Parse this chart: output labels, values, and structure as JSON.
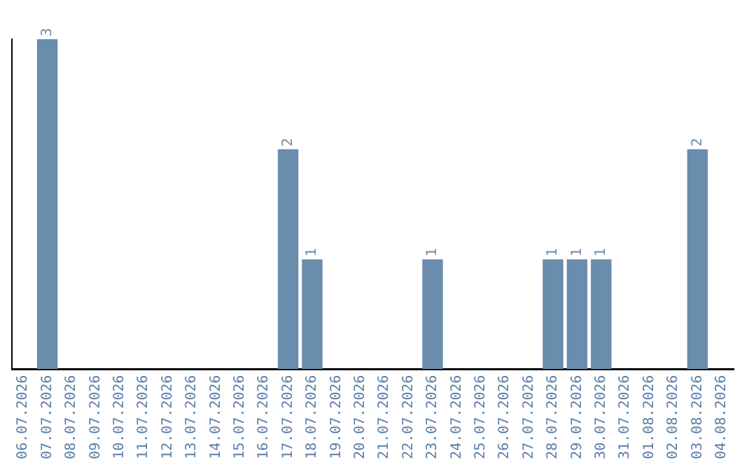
{
  "chart_data": {
    "type": "bar",
    "categories": [
      "06.07.2026",
      "07.07.2026",
      "08.07.2026",
      "09.07.2026",
      "10.07.2026",
      "11.07.2026",
      "12.07.2026",
      "13.07.2026",
      "14.07.2026",
      "15.07.2026",
      "16.07.2026",
      "17.07.2026",
      "18.07.2026",
      "19.07.2026",
      "20.07.2026",
      "21.07.2026",
      "22.07.2026",
      "23.07.2026",
      "24.07.2026",
      "25.07.2026",
      "26.07.2026",
      "27.07.2026",
      "28.07.2026",
      "29.07.2026",
      "30.07.2026",
      "31.07.2026",
      "01.08.2026",
      "02.08.2026",
      "03.08.2026",
      "04.08.2026"
    ],
    "values": [
      0,
      3,
      0,
      0,
      0,
      0,
      0,
      0,
      0,
      0,
      0,
      2,
      1,
      0,
      0,
      0,
      0,
      1,
      0,
      0,
      0,
      0,
      1,
      1,
      1,
      0,
      0,
      0,
      2,
      0
    ],
    "value_labels": [
      null,
      "3",
      null,
      null,
      null,
      null,
      null,
      null,
      null,
      null,
      null,
      "2",
      "1",
      null,
      null,
      null,
      null,
      "1",
      null,
      null,
      null,
      null,
      "1",
      "1",
      "1",
      null,
      null,
      null,
      "2",
      null
    ],
    "color": "#6a8cad",
    "grid": false,
    "legend": false,
    "tick_labels": "x"
  }
}
